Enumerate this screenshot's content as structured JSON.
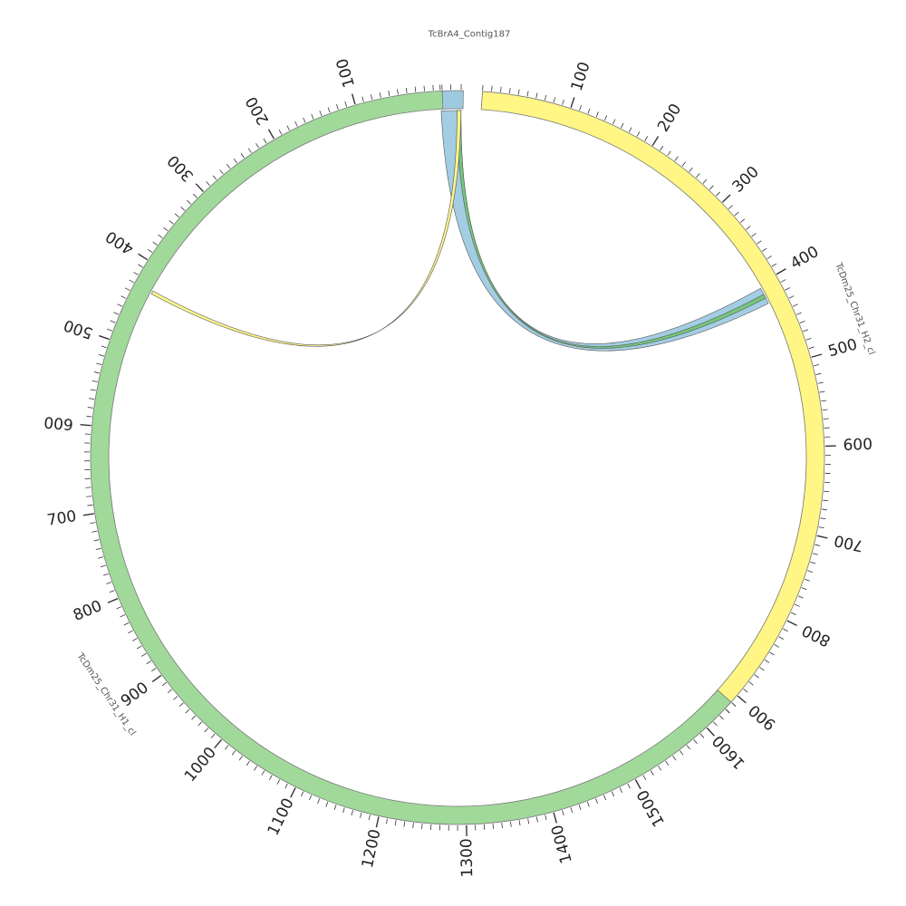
{
  "diagram": {
    "type": "circos",
    "segments": [
      {
        "id": "contig187",
        "label": "TcBrA4_Contig187",
        "length": 22,
        "color": "#9ecae1",
        "tick_labels": []
      },
      {
        "id": "h2",
        "label": "TcDm25_Chr31_H2_cl",
        "length": 920,
        "color": "#fff685",
        "tick_labels": [
          "100",
          "200",
          "300",
          "400",
          "500",
          "600",
          "700",
          "800",
          "900"
        ]
      },
      {
        "id": "h1",
        "label": "TcDm25_Chr31_H1_cl",
        "length": 1640,
        "color": "#a1d99b",
        "tick_labels": [
          "100",
          "200",
          "300",
          "400",
          "500",
          "600",
          "700",
          "800",
          "900",
          "1000",
          "1100",
          "1200",
          "1300",
          "1400",
          "1500",
          "1600"
        ]
      }
    ],
    "links": [
      {
        "from": {
          "segment": "contig187",
          "start": 0,
          "end": 20
        },
        "to": {
          "segment": "h2",
          "start": 405,
          "end": 425
        },
        "color": "#9ecae1"
      },
      {
        "from": {
          "segment": "contig187",
          "start": 16,
          "end": 20
        },
        "to": {
          "segment": "h2",
          "start": 413,
          "end": 418
        },
        "color": "#74c476"
      },
      {
        "from": {
          "segment": "contig187",
          "start": 16,
          "end": 20
        },
        "to": {
          "segment": "h1",
          "start": 428,
          "end": 432
        },
        "color": "#fff685"
      }
    ]
  }
}
